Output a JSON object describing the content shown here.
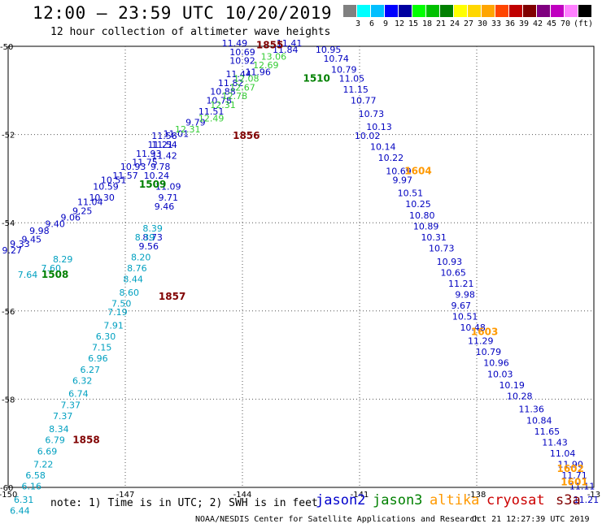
{
  "header": {
    "title": "12:00 – 23:59 UTC 10/20/2019",
    "subtitle": "12 hour collection of altimeter wave heights"
  },
  "legend": {
    "unit": "(ft)",
    "colors": [
      "#808080",
      "#00ffff",
      "#00bfff",
      "#0000ff",
      "#0000a0",
      "#00ff00",
      "#00c000",
      "#008000",
      "#ffff00",
      "#ffd700",
      "#ffa500",
      "#ff4500",
      "#c00000",
      "#800000",
      "#800080",
      "#c000c0",
      "#ff80ff",
      "#000000"
    ],
    "labels": [
      "3",
      "6",
      "9",
      "12",
      "15",
      "18",
      "21",
      "24",
      "27",
      "30",
      "33",
      "36",
      "39",
      "42",
      "45",
      "70"
    ]
  },
  "footer": {
    "note": "note:  1) Time is in UTC;  2) SWH is in feet",
    "source": "NOAA/NESDIS Center for Satellite Applications and Research",
    "timestamp": "Oct 21 12:27:39 UTC 2019",
    "missions": [
      {
        "name": "jason2",
        "color": "#0000cc"
      },
      {
        "name": "jason3",
        "color": "#008000"
      },
      {
        "name": "altika",
        "color": "#ff9900"
      },
      {
        "name": "cryosat",
        "color": "#cc0000"
      },
      {
        "name": "s3a",
        "color": "#800000"
      }
    ]
  },
  "chart_data": {
    "type": "scatter",
    "xlim": [
      -150,
      -135
    ],
    "ylim": [
      -60,
      -50
    ],
    "x_ticks": [
      -147,
      -144,
      -141,
      -138
    ],
    "y_ticks": [
      -52,
      -54,
      -56,
      -58
    ],
    "corner_labels": {
      "left_bottom": "-150",
      "right_bottom": "-13",
      "top_left": "-50",
      "bottom_left": "-60"
    },
    "track_labels": [
      {
        "text": "1855",
        "x": -143.3,
        "y": -50.05,
        "color": "#800000"
      },
      {
        "text": "1510",
        "x": -142.1,
        "y": -50.8,
        "color": "#008000"
      },
      {
        "text": "1856",
        "x": -143.9,
        "y": -52.1,
        "color": "#800000"
      },
      {
        "text": "1509",
        "x": -146.3,
        "y": -53.2,
        "color": "#008000"
      },
      {
        "text": "1508",
        "x": -148.8,
        "y": -55.25,
        "color": "#008000"
      },
      {
        "text": "1857",
        "x": -145.8,
        "y": -55.75,
        "color": "#800000"
      },
      {
        "text": "1858",
        "x": -148.0,
        "y": -59.0,
        "color": "#800000"
      },
      {
        "text": "1604",
        "x": -139.5,
        "y": -52.9,
        "color": "#ff9900"
      },
      {
        "text": "1603",
        "x": -137.8,
        "y": -56.55,
        "color": "#ff9900"
      },
      {
        "text": "1602",
        "x": -135.6,
        "y": -59.65,
        "color": "#ff9900"
      },
      {
        "text": "1601",
        "x": -135.5,
        "y": -59.95,
        "color": "#ff9900"
      }
    ],
    "series": [
      {
        "name": "jason2",
        "color": "#0000c0",
        "points": [
          {
            "x": -144.2,
            "y": -50.0,
            "v": "11.49"
          },
          {
            "x": -144.0,
            "y": -50.2,
            "v": "10.69"
          },
          {
            "x": -144.0,
            "y": -50.4,
            "v": "10.92"
          },
          {
            "x": -143.6,
            "y": -50.65,
            "v": "11.96"
          },
          {
            "x": -144.1,
            "y": -50.7,
            "v": "11.44"
          },
          {
            "x": -144.3,
            "y": -50.9,
            "v": "11.82"
          },
          {
            "x": -144.5,
            "y": -51.1,
            "v": "10.88"
          },
          {
            "x": -144.6,
            "y": -51.3,
            "v": "10.78"
          },
          {
            "x": -144.8,
            "y": -51.55,
            "v": "11.51"
          },
          {
            "x": -145.2,
            "y": -51.8,
            "v": "9.79"
          },
          {
            "x": -145.7,
            "y": -52.05,
            "v": "11.01"
          },
          {
            "x": -146.0,
            "y": -52.1,
            "v": "11.58"
          },
          {
            "x": -146.0,
            "y": -52.3,
            "v": "11.54"
          },
          {
            "x": -146.1,
            "y": -52.3,
            "v": "11.21"
          },
          {
            "x": -146.4,
            "y": -52.5,
            "v": "11.93"
          },
          {
            "x": -146.0,
            "y": -52.55,
            "v": "11.42"
          },
          {
            "x": -146.5,
            "y": -52.7,
            "v": "11.75"
          },
          {
            "x": -146.1,
            "y": -52.8,
            "v": "9.78"
          },
          {
            "x": -146.8,
            "y": -52.8,
            "v": "10.93"
          },
          {
            "x": -147.0,
            "y": -53.0,
            "v": "11.57"
          },
          {
            "x": -146.2,
            "y": -53.0,
            "v": "10.24"
          },
          {
            "x": -147.3,
            "y": -53.1,
            "v": "10.51"
          },
          {
            "x": -147.5,
            "y": -53.25,
            "v": "10.59"
          },
          {
            "x": -145.9,
            "y": -53.25,
            "v": "11.09"
          },
          {
            "x": -147.6,
            "y": -53.5,
            "v": "10.30"
          },
          {
            "x": -145.9,
            "y": -53.5,
            "v": "9.71"
          },
          {
            "x": -147.9,
            "y": -53.6,
            "v": "11.04"
          },
          {
            "x": -148.1,
            "y": -53.8,
            "v": "9.25"
          },
          {
            "x": -146.0,
            "y": -53.7,
            "v": "9.46"
          },
          {
            "x": -148.4,
            "y": -53.95,
            "v": "9.06"
          },
          {
            "x": -148.8,
            "y": -54.1,
            "v": "9.40"
          },
          {
            "x": -149.2,
            "y": -54.25,
            "v": "9.98"
          },
          {
            "x": -149.4,
            "y": -54.45,
            "v": "9.45"
          },
          {
            "x": -149.7,
            "y": -54.55,
            "v": "9.33"
          },
          {
            "x": -149.9,
            "y": -54.7,
            "v": "9.27"
          },
          {
            "x": -146.3,
            "y": -54.4,
            "v": "8.73"
          },
          {
            "x": -146.4,
            "y": -54.6,
            "v": "9.56"
          },
          {
            "x": -141.8,
            "y": -50.15,
            "v": "10.95"
          },
          {
            "x": -141.6,
            "y": -50.35,
            "v": "10.74"
          },
          {
            "x": -141.4,
            "y": -50.6,
            "v": "10.79"
          },
          {
            "x": -141.2,
            "y": -50.8,
            "v": "11.05"
          },
          {
            "x": -141.1,
            "y": -51.05,
            "v": "11.15"
          },
          {
            "x": -140.9,
            "y": -51.3,
            "v": "10.77"
          },
          {
            "x": -140.7,
            "y": -51.6,
            "v": "10.73"
          },
          {
            "x": -140.5,
            "y": -51.9,
            "v": "10.13"
          },
          {
            "x": -140.8,
            "y": -52.1,
            "v": "10.02"
          },
          {
            "x": -140.4,
            "y": -52.35,
            "v": "10.14"
          },
          {
            "x": -140.2,
            "y": -52.6,
            "v": "10.22"
          },
          {
            "x": -140.0,
            "y": -52.9,
            "v": "10.69"
          },
          {
            "x": -139.9,
            "y": -53.1,
            "v": "9.97"
          },
          {
            "x": -139.7,
            "y": -53.4,
            "v": "10.51"
          },
          {
            "x": -139.5,
            "y": -53.65,
            "v": "10.25"
          },
          {
            "x": -139.4,
            "y": -53.9,
            "v": "10.80"
          },
          {
            "x": -139.3,
            "y": -54.15,
            "v": "10.89"
          },
          {
            "x": -139.1,
            "y": -54.4,
            "v": "10.31"
          },
          {
            "x": -138.9,
            "y": -54.65,
            "v": "10.73"
          },
          {
            "x": -138.7,
            "y": -54.95,
            "v": "10.93"
          },
          {
            "x": -138.6,
            "y": -55.2,
            "v": "10.65"
          },
          {
            "x": -138.4,
            "y": -55.45,
            "v": "11.21"
          },
          {
            "x": -138.3,
            "y": -55.7,
            "v": "9.98"
          },
          {
            "x": -138.4,
            "y": -55.95,
            "v": "9.67"
          },
          {
            "x": -138.3,
            "y": -56.2,
            "v": "10.51"
          },
          {
            "x": -138.1,
            "y": -56.45,
            "v": "10.48"
          },
          {
            "x": -137.9,
            "y": -56.75,
            "v": "11.29"
          },
          {
            "x": -137.7,
            "y": -57.0,
            "v": "10.79"
          },
          {
            "x": -137.5,
            "y": -57.25,
            "v": "10.96"
          },
          {
            "x": -137.4,
            "y": -57.5,
            "v": "10.03"
          },
          {
            "x": -137.1,
            "y": -57.75,
            "v": "10.19"
          },
          {
            "x": -136.9,
            "y": -58.0,
            "v": "10.28"
          },
          {
            "x": -136.6,
            "y": -58.3,
            "v": "11.36"
          },
          {
            "x": -136.4,
            "y": -58.55,
            "v": "10.84"
          },
          {
            "x": -136.2,
            "y": -58.8,
            "v": "11.65"
          },
          {
            "x": -136.0,
            "y": -59.05,
            "v": "11.43"
          },
          {
            "x": -135.8,
            "y": -59.3,
            "v": "11.04"
          },
          {
            "x": -135.6,
            "y": -59.55,
            "v": "11.90"
          },
          {
            "x": -135.5,
            "y": -59.8,
            "v": "11.71"
          },
          {
            "x": -135.3,
            "y": -60.05,
            "v": "11.11"
          },
          {
            "x": -135.2,
            "y": -60.35,
            "v": "11.21"
          },
          {
            "x": -142.8,
            "y": -50.0,
            "v": "11.41"
          },
          {
            "x": -142.9,
            "y": -50.15,
            "v": "11.84"
          }
        ]
      },
      {
        "name": "jason3",
        "color": "#33cc33",
        "points": [
          {
            "x": -143.2,
            "y": -50.3,
            "v": "13.06"
          },
          {
            "x": -143.4,
            "y": -50.5,
            "v": "12.69"
          },
          {
            "x": -143.9,
            "y": -50.8,
            "v": "12.08"
          },
          {
            "x": -144.0,
            "y": -51.0,
            "v": "12.67"
          },
          {
            "x": -144.2,
            "y": -51.2,
            "v": "12.78"
          },
          {
            "x": -144.5,
            "y": -51.4,
            "v": "12.31"
          },
          {
            "x": -144.8,
            "y": -51.7,
            "v": "12.49"
          },
          {
            "x": -145.4,
            "y": -51.95,
            "v": "12.31"
          }
        ]
      },
      {
        "name": "cryosat",
        "color": "#00a0c0",
        "points": [
          {
            "x": -148.6,
            "y": -54.9,
            "v": "8.29"
          },
          {
            "x": -148.9,
            "y": -55.1,
            "v": "7.60"
          },
          {
            "x": -149.5,
            "y": -55.25,
            "v": "7.64"
          },
          {
            "x": -146.3,
            "y": -54.2,
            "v": "8.39"
          },
          {
            "x": -146.5,
            "y": -54.4,
            "v": "8.39"
          },
          {
            "x": -146.6,
            "y": -54.85,
            "v": "8.20"
          },
          {
            "x": -146.7,
            "y": -55.1,
            "v": "8.76"
          },
          {
            "x": -146.8,
            "y": -55.35,
            "v": "8.44"
          },
          {
            "x": -146.9,
            "y": -55.65,
            "v": "8.60"
          },
          {
            "x": -147.1,
            "y": -55.9,
            "v": "7.50"
          },
          {
            "x": -147.2,
            "y": -56.1,
            "v": "7.19"
          },
          {
            "x": -147.3,
            "y": -56.4,
            "v": "7.91"
          },
          {
            "x": -147.5,
            "y": -56.65,
            "v": "6.30"
          },
          {
            "x": -147.6,
            "y": -56.9,
            "v": "7.15"
          },
          {
            "x": -147.7,
            "y": -57.15,
            "v": "6.96"
          },
          {
            "x": -147.9,
            "y": -57.4,
            "v": "6.27"
          },
          {
            "x": -148.1,
            "y": -57.65,
            "v": "6.32"
          },
          {
            "x": -148.2,
            "y": -57.95,
            "v": "6.74"
          },
          {
            "x": -148.4,
            "y": -58.2,
            "v": "7.37"
          },
          {
            "x": -148.6,
            "y": -58.45,
            "v": "7.37"
          },
          {
            "x": -148.7,
            "y": -58.75,
            "v": "8.34"
          },
          {
            "x": -148.8,
            "y": -59.0,
            "v": "6.79"
          },
          {
            "x": -149.0,
            "y": -59.25,
            "v": "6.69"
          },
          {
            "x": -149.1,
            "y": -59.55,
            "v": "7.22"
          },
          {
            "x": -149.3,
            "y": -59.8,
            "v": "6.58"
          },
          {
            "x": -149.4,
            "y": -60.05,
            "v": "6.16"
          },
          {
            "x": -149.6,
            "y": -60.35,
            "v": "6.31"
          },
          {
            "x": -149.7,
            "y": -60.6,
            "v": "6.44"
          }
        ]
      }
    ]
  }
}
